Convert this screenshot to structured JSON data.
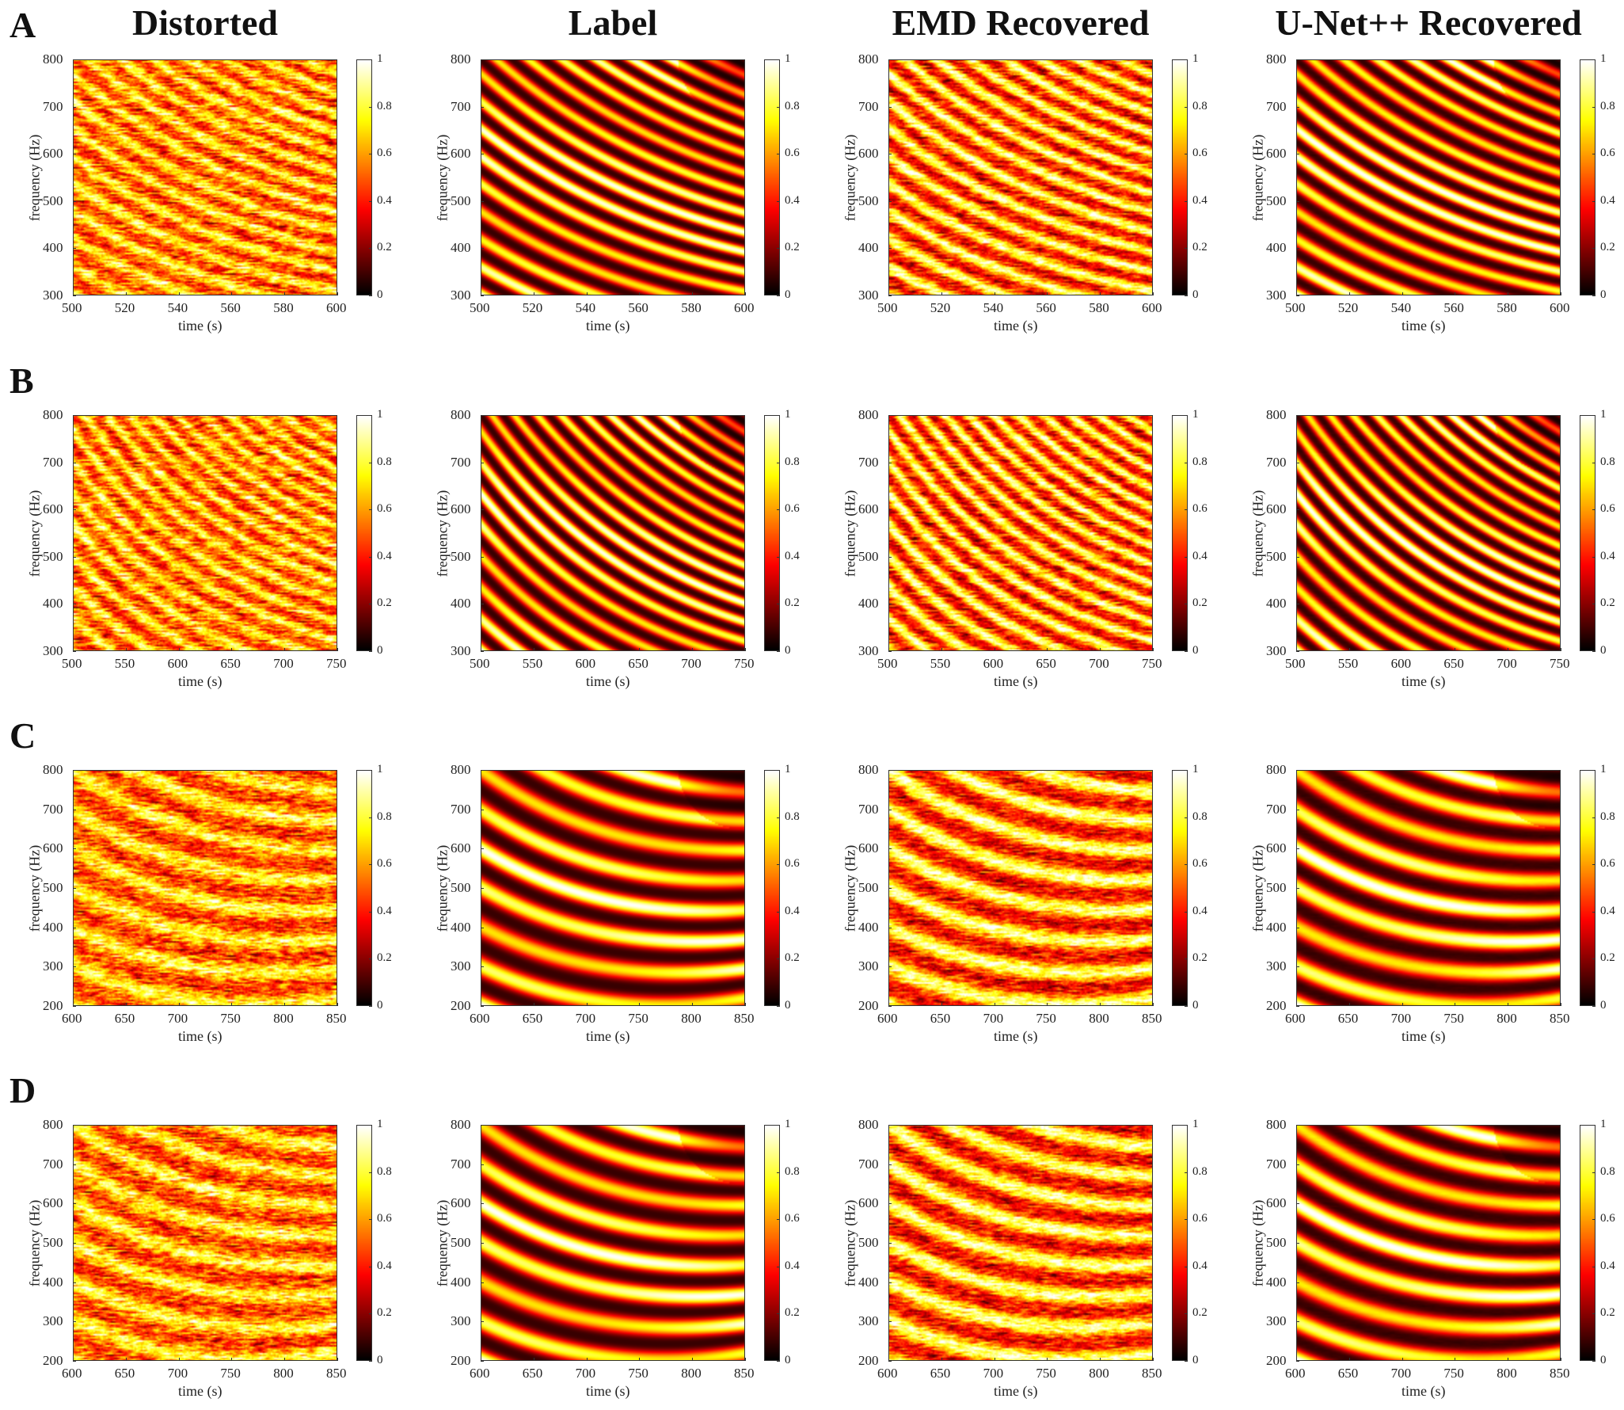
{
  "chart_data": {
    "type": "heatmap",
    "colormap": "hot",
    "column_titles": [
      "Distorted",
      "Label",
      "EMD Recovered",
      "U-Net++ Recovered"
    ],
    "rows": [
      {
        "label": "A",
        "xlabel": "time (s)",
        "ylabel": "frequency (Hz)",
        "xlim": [
          500,
          600
        ],
        "ylim": [
          300,
          800
        ],
        "xticks": [
          "500",
          "520",
          "540",
          "560",
          "580",
          "600"
        ],
        "yticks": [
          "300",
          "400",
          "500",
          "600",
          "700",
          "800"
        ],
        "colorbar_ticks": [
          "0",
          "0.2",
          "0.4",
          "0.6",
          "0.8",
          "1"
        ],
        "colorbar_range": [
          0,
          1
        ]
      },
      {
        "label": "B",
        "xlabel": "time (s)",
        "ylabel": "frequency (Hz)",
        "xlim": [
          500,
          750
        ],
        "ylim": [
          300,
          800
        ],
        "xticks": [
          "500",
          "550",
          "600",
          "650",
          "700",
          "750"
        ],
        "yticks": [
          "300",
          "400",
          "500",
          "600",
          "700",
          "800"
        ],
        "colorbar_ticks": [
          "0",
          "0.2",
          "0.4",
          "0.6",
          "0.8",
          "1"
        ],
        "colorbar_range": [
          0,
          1
        ]
      },
      {
        "label": "C",
        "xlabel": "time (s)",
        "ylabel": "frequency (Hz)",
        "xlim": [
          600,
          850
        ],
        "ylim": [
          200,
          800
        ],
        "xticks": [
          "600",
          "650",
          "700",
          "750",
          "800",
          "850"
        ],
        "yticks": [
          "200",
          "300",
          "400",
          "500",
          "600",
          "700",
          "800"
        ],
        "colorbar_ticks": [
          "0",
          "0.2",
          "0.4",
          "0.6",
          "0.8",
          "1"
        ],
        "colorbar_range": [
          0,
          1
        ]
      },
      {
        "label": "D",
        "xlabel": "time (s)",
        "ylabel": "frequency (Hz)",
        "xlim": [
          600,
          850
        ],
        "ylim": [
          200,
          800
        ],
        "xticks": [
          "600",
          "650",
          "700",
          "750",
          "800",
          "850"
        ],
        "yticks": [
          "200",
          "300",
          "400",
          "500",
          "600",
          "700",
          "800"
        ],
        "colorbar_ticks": [
          "0",
          "0.2",
          "0.4",
          "0.6",
          "0.8",
          "1"
        ],
        "colorbar_range": [
          0,
          1
        ]
      }
    ],
    "panel_variants": [
      "distorted",
      "label",
      "emd",
      "unet"
    ],
    "notes": "Heatmaps show decreasing-frequency chirp stripes over time; values in [0,1]."
  }
}
